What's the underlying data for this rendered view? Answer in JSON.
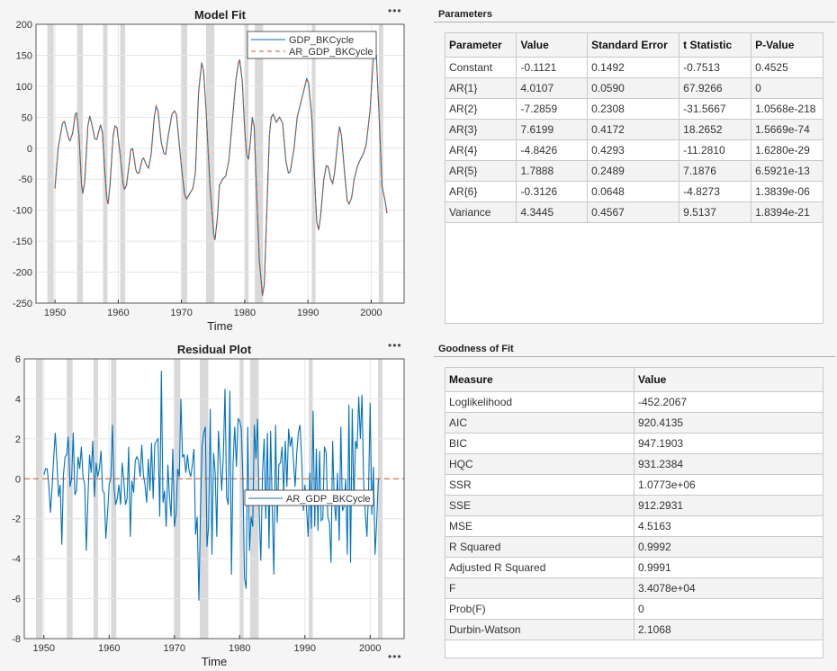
{
  "chart_data": [
    {
      "type": "line",
      "title": "Model Fit",
      "xlabel": "Time",
      "ylabel": "",
      "xlim": [
        1947,
        2005.2
      ],
      "ylim": [
        -250,
        200
      ],
      "xticks": [
        1950,
        1960,
        1970,
        1980,
        1990,
        2000
      ],
      "yticks": [
        -250,
        -200,
        -150,
        -100,
        -50,
        0,
        50,
        100,
        150,
        200
      ],
      "grid": true,
      "legend_position": "top-right",
      "recession_bands": [
        [
          1948.8,
          1949.8
        ],
        [
          1953.5,
          1954.4
        ],
        [
          1957.6,
          1958.3
        ],
        [
          1960.3,
          1961.1
        ],
        [
          1969.9,
          1970.9
        ],
        [
          1973.9,
          1975.2
        ],
        [
          1980.0,
          1980.6
        ],
        [
          1981.6,
          1982.9
        ],
        [
          1990.6,
          1991.2
        ],
        [
          2001.2,
          2001.9
        ]
      ],
      "x": [
        1950.0,
        1950.5,
        1951.2,
        1951.5,
        1952.2,
        1952.4,
        1952.8,
        1953.2,
        1953.4,
        1953.8,
        1954.2,
        1954.4,
        1954.7,
        1955.2,
        1955.5,
        1955.8,
        1956.3,
        1956.6,
        1957.0,
        1957.2,
        1957.5,
        1957.9,
        1958.2,
        1958.4,
        1958.7,
        1959.2,
        1959.5,
        1959.8,
        1960.3,
        1960.8,
        1961.0,
        1961.3,
        1961.8,
        1962.0,
        1962.3,
        1962.8,
        1963.0,
        1963.3,
        1963.8,
        1964.0,
        1964.5,
        1964.8,
        1965.2,
        1965.7,
        1966.0,
        1966.3,
        1966.8,
        1967.2,
        1967.5,
        1967.9,
        1968.5,
        1968.9,
        1969.2,
        1970.0,
        1970.5,
        1970.8,
        1971.2,
        1971.8,
        1972.2,
        1972.7,
        1973.2,
        1973.5,
        1973.9,
        1974.5,
        1975.1,
        1975.3,
        1975.7,
        1976.0,
        1976.5,
        1977.0,
        1977.5,
        1978.0,
        1978.6,
        1979.0,
        1979.2,
        1979.6,
        1980.0,
        1980.3,
        1980.6,
        1980.9,
        1981.2,
        1981.5,
        1981.8,
        1982.3,
        1982.8,
        1983.1,
        1983.5,
        1983.9,
        1984.2,
        1984.5,
        1985.0,
        1985.5,
        1986.0,
        1986.5,
        1986.9,
        1987.2,
        1987.8,
        1988.3,
        1988.9,
        1989.5,
        1989.8,
        1990.1,
        1990.6,
        1991.0,
        1991.4,
        1991.7,
        1992.0,
        1992.5,
        1992.9,
        1993.2,
        1993.6,
        1993.9,
        1994.2,
        1994.8,
        1995.0,
        1995.3,
        1995.8,
        1996.2,
        1996.5,
        1996.9,
        1997.3,
        1997.8,
        1998.2,
        1998.8,
        1999.2,
        1999.8,
        2000.3,
        2000.5,
        2000.8,
        2001.3,
        2001.7,
        2002.2,
        2002.5
      ],
      "series": [
        {
          "name": "GDP_BKCycle",
          "color": "#0072BD",
          "style": "solid",
          "values": [
            -65,
            0,
            40,
            43,
            15,
            12,
            25,
            55,
            57,
            20,
            -60,
            -73,
            -55,
            35,
            52,
            40,
            15,
            14,
            30,
            38,
            25,
            -40,
            -82,
            -90,
            -60,
            20,
            36,
            33,
            -10,
            -60,
            -66,
            -60,
            -20,
            -2,
            -1,
            -35,
            -40,
            -40,
            -18,
            -16,
            -28,
            -32,
            -10,
            50,
            68,
            60,
            10,
            -8,
            -10,
            20,
            55,
            60,
            55,
            -30,
            -75,
            -82,
            -75,
            -65,
            -40,
            90,
            138,
            125,
            60,
            -60,
            -140,
            -148,
            -110,
            -60,
            -50,
            -45,
            -20,
            40,
            110,
            137,
            143,
            110,
            30,
            -10,
            -18,
            10,
            50,
            35,
            -50,
            -180,
            -238,
            -220,
            -100,
            20,
            50,
            55,
            42,
            50,
            40,
            -20,
            -40,
            -38,
            0,
            50,
            75,
            100,
            112,
            105,
            50,
            -40,
            -120,
            -132,
            -110,
            -50,
            -28,
            -30,
            -50,
            -57,
            -40,
            20,
            35,
            20,
            -40,
            -85,
            -90,
            -80,
            -50,
            -30,
            -20,
            -8,
            5,
            60,
            140,
            160,
            150,
            40,
            -60,
            -85,
            -105
          ]
        },
        {
          "name": "AR_GDP_BKCycle",
          "color": "#D95319",
          "style": "dashed",
          "values": [
            -65,
            0,
            40,
            43,
            15,
            12,
            25,
            55,
            57,
            20,
            -60,
            -73,
            -55,
            35,
            52,
            40,
            15,
            14,
            30,
            38,
            25,
            -40,
            -82,
            -90,
            -60,
            20,
            36,
            33,
            -10,
            -60,
            -66,
            -60,
            -20,
            -2,
            -1,
            -35,
            -40,
            -40,
            -18,
            -16,
            -28,
            -32,
            -10,
            50,
            68,
            60,
            10,
            -8,
            -10,
            20,
            55,
            60,
            55,
            -30,
            -75,
            -82,
            -75,
            -65,
            -40,
            90,
            138,
            125,
            60,
            -60,
            -140,
            -148,
            -110,
            -60,
            -50,
            -45,
            -20,
            40,
            110,
            137,
            143,
            110,
            30,
            -10,
            -18,
            10,
            50,
            35,
            -50,
            -180,
            -238,
            -220,
            -100,
            20,
            50,
            55,
            42,
            50,
            40,
            -20,
            -40,
            -38,
            0,
            50,
            75,
            100,
            112,
            105,
            50,
            -40,
            -120,
            -132,
            -110,
            -50,
            -28,
            -30,
            -50,
            -57,
            -40,
            20,
            35,
            20,
            -40,
            -85,
            -90,
            -80,
            -50,
            -30,
            -20,
            -8,
            5,
            60,
            140,
            160,
            150,
            40,
            -60,
            -85,
            -105
          ]
        }
      ]
    },
    {
      "type": "line",
      "title": "Residual Plot",
      "xlabel": "Time",
      "ylabel": "",
      "xlim": [
        1947,
        2005.2
      ],
      "ylim": [
        -8,
        6
      ],
      "xticks": [
        1950,
        1960,
        1970,
        1980,
        1990,
        2000
      ],
      "yticks": [
        -8,
        -6,
        -4,
        -2,
        0,
        2,
        4,
        6
      ],
      "grid": true,
      "legend_position": "center-right",
      "recession_bands": [
        [
          1948.8,
          1949.8
        ],
        [
          1953.5,
          1954.4
        ],
        [
          1957.6,
          1958.3
        ],
        [
          1960.3,
          1961.1
        ],
        [
          1969.9,
          1970.9
        ],
        [
          1973.9,
          1975.2
        ],
        [
          1980.0,
          1980.6
        ],
        [
          1981.6,
          1982.9
        ],
        [
          1990.6,
          1991.2
        ],
        [
          2001.2,
          2001.9
        ]
      ],
      "zero_line": {
        "value": 0,
        "color": "#D95319",
        "style": "dashed"
      },
      "x_start": 1950.0,
      "x_step": 0.25,
      "series": [
        {
          "name": "AR_GDP_BKCycle",
          "color": "#0072BD",
          "style": "solid",
          "values": [
            0.2,
            0.5,
            0.5,
            -0.3,
            -1.7,
            -0.5,
            1.0,
            2.3,
            0.8,
            -0.9,
            -0.3,
            -3.3,
            0.2,
            1.1,
            1.2,
            2.1,
            -0.4,
            0,
            2.3,
            -0.8,
            -0.6,
            1.1,
            0.5,
            1.6,
            0.1,
            -0.3,
            -3.6,
            -1,
            1.2,
            0.3,
            1.9,
            -0.9,
            0.8,
            0.1,
            0.5,
            1.4,
            -0.6,
            -0.7,
            -3.0,
            -1.8,
            -0.3,
            0,
            2.7,
            -0.4,
            -1.3,
            -1,
            -0.3,
            -1.3,
            0.8,
            -0.1,
            -1.3,
            -1,
            1.6,
            -2.9,
            -0.1,
            -0.7,
            0.9,
            1.1,
            0.9,
            0.1,
            1.7,
            0.2,
            -0.3,
            -1.2,
            1.0,
            -0.6,
            1.8,
            -1.0,
            1.7,
            1.9,
            2.0,
            -1.9,
            5.4,
            -1.2,
            -0.6,
            -2.4,
            0.7,
            -0.9,
            -1.9,
            1.5,
            -2.4,
            -1.8,
            0.5,
            0.1,
            4.0,
            1.1,
            1.2,
            0.3,
            1.2,
            0.4,
            0.1,
            0.7,
            1.5,
            -2.8,
            -1.9,
            -6.1,
            -1.5,
            1.7,
            2.3,
            2.6,
            -3.4,
            -2.4,
            3.5,
            -3.8,
            1.3,
            0.3,
            -2.9,
            2.4,
            1.0,
            -0.6,
            1.2,
            4.5,
            -0.9,
            -1.3,
            4.4,
            -4.8,
            0.8,
            2.6,
            0.6,
            3.0,
            2.9,
            2.5,
            0,
            -5,
            -5.5,
            2.6,
            -3.6,
            -1.9,
            -2.4,
            2.7,
            1.0,
            3.0,
            -1.6,
            -4.1,
            0.3,
            2.0,
            -2.0,
            2.3,
            -3.5,
            2.4,
            -1.5,
            -4.8,
            2.7,
            -2.2,
            0.7,
            0.8,
            1.6,
            -0.8,
            1.9,
            -0.4,
            2.5,
            1.6,
            2.1,
            0.9,
            -0.4,
            1.3,
            2.3,
            2.7,
            1.0,
            -1.6,
            -0.3,
            -1.5,
            -2.9,
            0.3,
            -2.5,
            3.4,
            -2.4,
            1.5,
            -2.6,
            1.4,
            -2.1,
            -2.0,
            1.6,
            1.3,
            -1.9,
            -2.2,
            -4.2,
            1.9,
            -1.1,
            -2.1,
            0.3,
            -3.1,
            2.6,
            -1.6,
            -1.4,
            0,
            -3.8,
            3.7,
            -4.2,
            3.5,
            -1.3,
            1.9,
            1.5,
            4.1,
            2.0,
            4.2,
            -0.1,
            -1.7,
            -2.9,
            -0.6,
            3.8,
            -1.8,
            0.6,
            -3.8,
            -2.2,
            0
          ]
        }
      ]
    }
  ],
  "menu_dots": "•••",
  "parameters": {
    "title": "Parameters",
    "columns": [
      "Parameter",
      "Value",
      "Standard Error",
      "t Statistic",
      "P-Value"
    ],
    "rows": [
      [
        "Constant",
        "-0.1121",
        "0.1492",
        "-0.7513",
        "0.4525"
      ],
      [
        "AR{1}",
        "4.0107",
        "0.0590",
        "67.9266",
        "0"
      ],
      [
        "AR{2}",
        "-7.2859",
        "0.2308",
        "-31.5667",
        "1.0568e-218"
      ],
      [
        "AR{3}",
        "7.6199",
        "0.4172",
        "18.2652",
        "1.5669e-74"
      ],
      [
        "AR{4}",
        "-4.8426",
        "0.4293",
        "-11.2810",
        "1.6280e-29"
      ],
      [
        "AR{5}",
        "1.7888",
        "0.2489",
        "7.1876",
        "6.5921e-13"
      ],
      [
        "AR{6}",
        "-0.3126",
        "0.0648",
        "-4.8273",
        "1.3839e-06"
      ],
      [
        "Variance",
        "4.3445",
        "0.4567",
        "9.5137",
        "1.8394e-21"
      ]
    ]
  },
  "goodness_of_fit": {
    "title": "Goodness of Fit",
    "columns": [
      "Measure",
      "Value"
    ],
    "rows": [
      [
        "Loglikelihood",
        "-452.2067"
      ],
      [
        "AIC",
        "920.4135"
      ],
      [
        "BIC",
        "947.1903"
      ],
      [
        "HQC",
        "931.2384"
      ],
      [
        "SSR",
        "1.0773e+06"
      ],
      [
        "SSE",
        "912.2931"
      ],
      [
        "MSE",
        "4.5163"
      ],
      [
        "R Squared",
        "0.9992"
      ],
      [
        "Adjusted R Squared",
        "0.9991"
      ],
      [
        "F",
        "3.4078e+04"
      ],
      [
        "Prob(F)",
        "0"
      ],
      [
        "Durbin-Watson",
        "2.1068"
      ]
    ]
  }
}
